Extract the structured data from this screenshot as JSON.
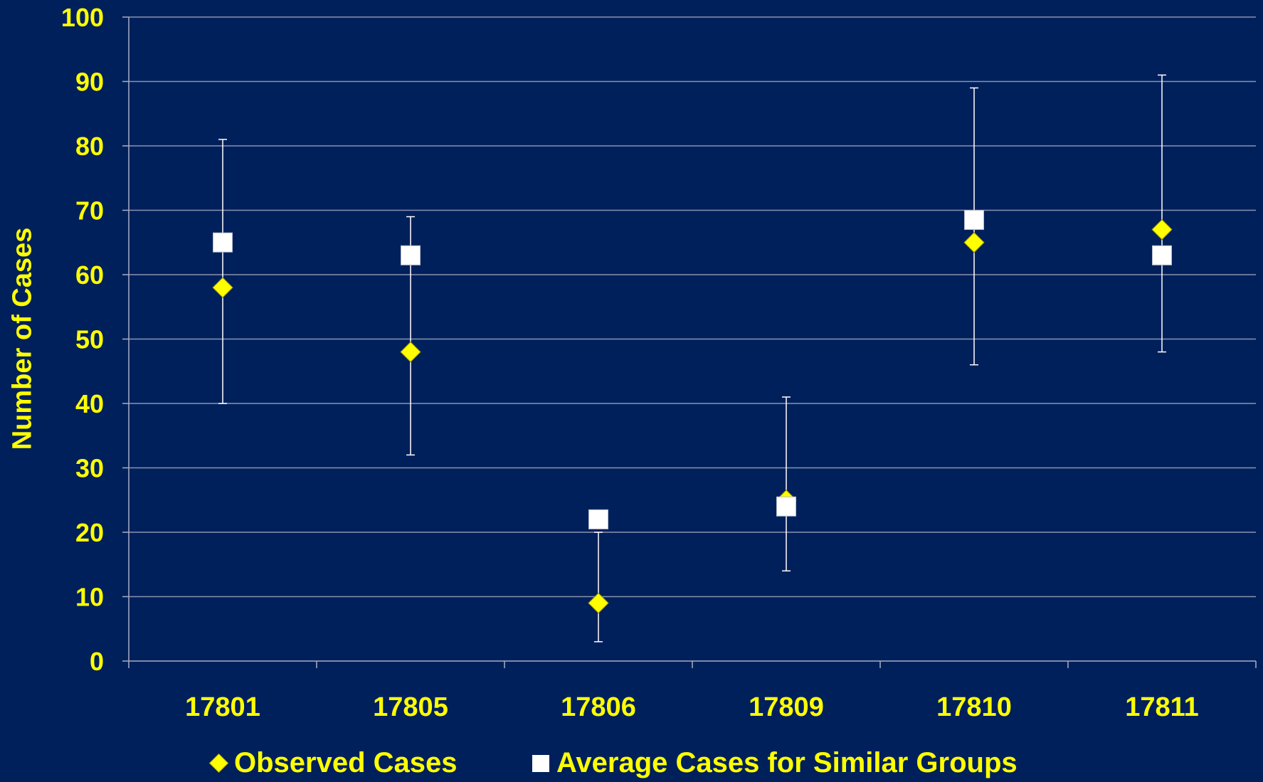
{
  "chart_data": {
    "type": "scatter",
    "title": "",
    "xlabel": "",
    "ylabel": "Number of Cases",
    "categories": [
      "17801",
      "17805",
      "17806",
      "17809",
      "17810",
      "17811"
    ],
    "yticks": [
      "0",
      "10",
      "20",
      "30",
      "40",
      "50",
      "60",
      "70",
      "80",
      "90",
      "100"
    ],
    "ylim": [
      0,
      100
    ],
    "grid": true,
    "legend_position": "bottom",
    "series": [
      {
        "name": "Observed Cases",
        "marker": "diamond",
        "color": "#ffff00",
        "values": [
          58,
          48,
          9,
          25,
          65,
          67
        ]
      },
      {
        "name": "Average Cases for Similar Groups",
        "marker": "square",
        "color": "#ffffff",
        "values": [
          65,
          63,
          22,
          24,
          68.5,
          63
        ]
      }
    ],
    "error_bars": [
      {
        "low": 40,
        "high": 81
      },
      {
        "low": 32,
        "high": 69
      },
      {
        "low": 3,
        "high": 20
      },
      {
        "low": 14,
        "high": 41
      },
      {
        "low": 46,
        "high": 89
      },
      {
        "low": 48,
        "high": 91
      }
    ]
  },
  "colors": {
    "background": "#00205b",
    "text": "#ffff00",
    "gridline": "#8a93ae",
    "axis": "#a7aec4",
    "errorbar": "#ffffff"
  }
}
